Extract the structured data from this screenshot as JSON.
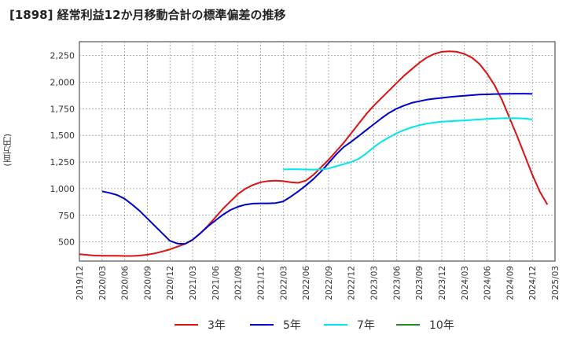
{
  "title": "[1898]  経常利益12か月移動合計の標準偏差の推移",
  "chart_data": {
    "type": "line",
    "title": "[1898]  経常利益12か月移動合計の標準偏差の推移",
    "ylabel": "(百万円)",
    "xlabel": "",
    "ylim": [
      320,
      2380
    ],
    "yticks": [
      500,
      750,
      1000,
      1250,
      1500,
      1750,
      2000,
      2250
    ],
    "ytick_labels": [
      "500",
      "750",
      "1,000",
      "1,250",
      "1,500",
      "1,750",
      "2,000",
      "2,250"
    ],
    "x_ticks": [
      "2019/12",
      "2020/03",
      "2020/06",
      "2020/09",
      "2020/12",
      "2021/03",
      "2021/06",
      "2021/09",
      "2021/12",
      "2022/03",
      "2022/06",
      "2022/09",
      "2022/12",
      "2023/03",
      "2023/06",
      "2023/09",
      "2023/12",
      "2024/03",
      "2024/06",
      "2024/09",
      "2024/12",
      "2025/03"
    ],
    "grid": true,
    "legend_position": "bottom",
    "series": [
      {
        "name": "3年",
        "color": "#dd1111",
        "start": "2019/12",
        "values": [
          385,
          378,
          372,
          370,
          370,
          370,
          368,
          368,
          372,
          380,
          392,
          410,
          430,
          455,
          482,
          520,
          580,
          650,
          730,
          810,
          880,
          950,
          1000,
          1035,
          1060,
          1072,
          1075,
          1070,
          1060,
          1055,
          1075,
          1130,
          1200,
          1270,
          1350,
          1430,
          1520,
          1610,
          1700,
          1780,
          1850,
          1920,
          1990,
          2060,
          2120,
          2180,
          2230,
          2265,
          2285,
          2290,
          2285,
          2265,
          2230,
          2170,
          2080,
          1970,
          1830,
          1660,
          1490,
          1310,
          1130,
          970,
          850
        ]
      },
      {
        "name": "5年",
        "color": "#0000cc",
        "start": "2020/03",
        "values": [
          975,
          960,
          940,
          905,
          850,
          790,
          720,
          650,
          580,
          510,
          485,
          480,
          520,
          580,
          645,
          700,
          755,
          800,
          830,
          850,
          860,
          862,
          862,
          865,
          880,
          925,
          975,
          1030,
          1090,
          1160,
          1240,
          1320,
          1390,
          1440,
          1495,
          1550,
          1605,
          1660,
          1710,
          1750,
          1780,
          1805,
          1820,
          1835,
          1845,
          1852,
          1860,
          1867,
          1873,
          1878,
          1883,
          1885,
          1888,
          1890,
          1891,
          1892,
          1892,
          1890
        ]
      },
      {
        "name": "7年",
        "color": "#00e5ee",
        "start": "2022/03",
        "values": [
          1180,
          1182,
          1182,
          1180,
          1178,
          1180,
          1190,
          1210,
          1230,
          1250,
          1280,
          1330,
          1390,
          1440,
          1480,
          1520,
          1550,
          1575,
          1595,
          1610,
          1620,
          1628,
          1633,
          1637,
          1641,
          1645,
          1650,
          1655,
          1659,
          1661,
          1662,
          1661,
          1658,
          1650
        ]
      },
      {
        "name": "10年",
        "color": "#228b22",
        "start": "2025/03",
        "values": []
      }
    ]
  }
}
